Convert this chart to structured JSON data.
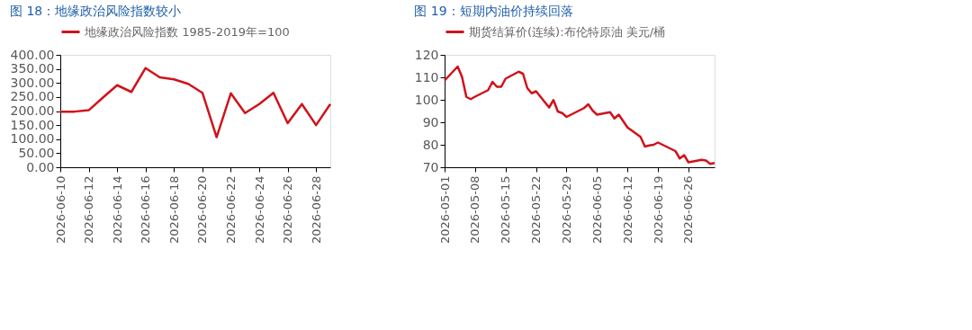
{
  "chart_data": [
    {
      "type": "line",
      "title": "图 18：地缘政治风险指数较小",
      "legend": "top",
      "x": [
        "2026-06-10",
        "2026-06-11",
        "2026-06-12",
        "2026-06-13",
        "2026-06-14",
        "2026-06-15",
        "2026-06-16",
        "2026-06-17",
        "2026-06-18",
        "2026-06-19",
        "2026-06-20",
        "2026-06-21",
        "2026-06-22",
        "2026-06-23",
        "2026-06-24",
        "2026-06-25",
        "2026-06-26",
        "2026-06-27",
        "2026-06-28",
        "2026-06-29"
      ],
      "series": [
        {
          "name": "地缘政治风险指数 1985-2019年=100",
          "color": "#d0121b",
          "values": [
            198,
            198,
            203,
            248,
            292,
            268,
            353,
            320,
            313,
            297,
            265,
            107,
            263,
            193,
            225,
            265,
            157,
            225,
            150,
            225
          ]
        }
      ],
      "xlim": [
        "2026-06-10",
        "2026-06-29"
      ],
      "xticks": [
        "2026-06-10",
        "2026-06-12",
        "2026-06-14",
        "2026-06-16",
        "2026-06-18",
        "2026-06-20",
        "2026-06-22",
        "2026-06-24",
        "2026-06-26",
        "2026-06-28"
      ],
      "ylim": [
        0,
        400
      ],
      "yticks": [
        {
          "value": 0,
          "label": "0.00"
        },
        {
          "value": 50,
          "label": "50.00"
        },
        {
          "value": 100,
          "label": "100.00"
        },
        {
          "value": 150,
          "label": "150.00"
        },
        {
          "value": 200,
          "label": "200.00"
        },
        {
          "value": 250,
          "label": "250.00"
        },
        {
          "value": 300,
          "label": "300.00"
        },
        {
          "value": 350,
          "label": "350.00"
        },
        {
          "value": 400,
          "label": "400.00"
        }
      ],
      "grid": false
    },
    {
      "type": "line",
      "title": "图 19：短期内油价持续回落",
      "legend": "top",
      "x": [
        "2026-05-01",
        "2026-05-04",
        "2026-05-05",
        "2026-05-06",
        "2026-05-07",
        "2026-05-08",
        "2026-05-11",
        "2026-05-12",
        "2026-05-13",
        "2026-05-14",
        "2026-05-15",
        "2026-05-18",
        "2026-05-19",
        "2026-05-20",
        "2026-05-21",
        "2026-05-22",
        "2026-05-25",
        "2026-05-26",
        "2026-05-27",
        "2026-05-28",
        "2026-05-29",
        "2026-06-02",
        "2026-06-03",
        "2026-06-04",
        "2026-06-05",
        "2026-06-08",
        "2026-06-09",
        "2026-06-10",
        "2026-06-12",
        "2026-06-15",
        "2026-06-16",
        "2026-06-17",
        "2026-06-18",
        "2026-06-19",
        "2026-06-23",
        "2026-06-24",
        "2026-06-25",
        "2026-06-26",
        "2026-06-29",
        "2026-06-30",
        "2026-07-01",
        "2026-07-02"
      ],
      "series": [
        {
          "name": "期货结算价(连续):布伦特原油 美元/桶",
          "color": "#d0121b",
          "values": [
            108.6,
            114.8,
            110.2,
            101.3,
            100.3,
            101.4,
            104.3,
            108,
            105.8,
            105.8,
            109.4,
            112.5,
            111.6,
            105.2,
            102.9,
            103.8,
            96.6,
            99.9,
            94.8,
            94.1,
            92.4,
            96.3,
            98,
            95.2,
            93.4,
            94.5,
            91.7,
            93.4,
            87.7,
            83.5,
            79.2,
            79.7,
            80,
            81,
            77.2,
            73.9,
            75.4,
            72.2,
            73.3,
            73,
            71.5,
            71.9
          ]
        }
      ],
      "xlim": [
        "2026-05-01",
        "2026-07-02"
      ],
      "xticks": [
        "2026-05-01",
        "2026-05-08",
        "2026-05-15",
        "2026-05-22",
        "2026-05-29",
        "2026-06-05",
        "2026-06-12",
        "2026-06-19",
        "2026-06-26"
      ],
      "ylim": [
        70,
        120
      ],
      "yticks": [
        70,
        80,
        90,
        100,
        110,
        120
      ],
      "grid": false
    }
  ]
}
